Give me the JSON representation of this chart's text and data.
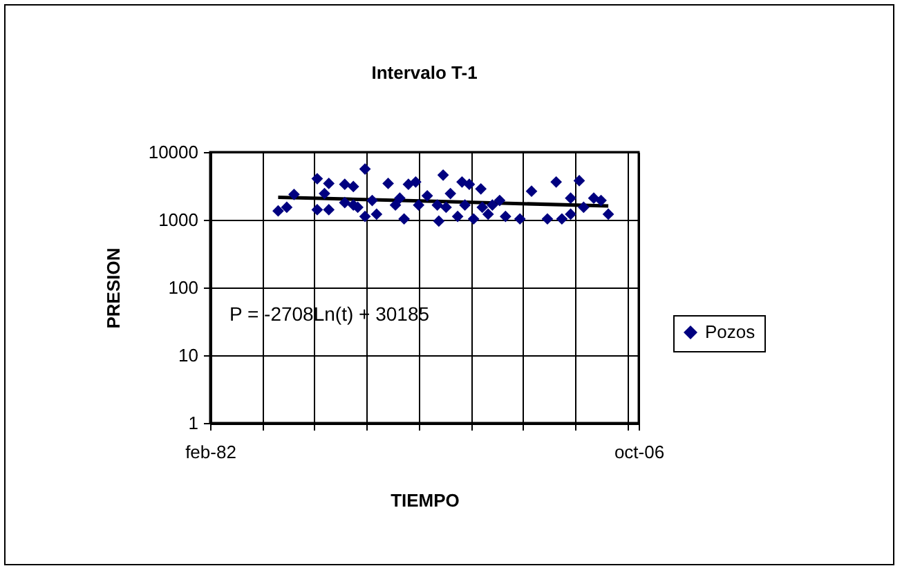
{
  "chart_data": {
    "type": "scatter",
    "title": "Intervalo T-1",
    "xlabel": "TIEMPO",
    "ylabel": "PRESION",
    "annotations": [
      "P = -2708Ln(t) + 30185"
    ],
    "log": "y",
    "grid": true,
    "legend": "right",
    "xlim": [
      "1982-02",
      "2006-10"
    ],
    "xticks": [
      {
        "value": "1982-02",
        "label": "feb-82"
      },
      {
        "value": "1985-02",
        "label": null
      },
      {
        "value": "1988-02",
        "label": null
      },
      {
        "value": "1991-02",
        "label": null
      },
      {
        "value": "1994-02",
        "label": null
      },
      {
        "value": "1997-02",
        "label": null
      },
      {
        "value": "2000-02",
        "label": null
      },
      {
        "value": "2003-02",
        "label": null
      },
      {
        "value": "2006-02",
        "label": null
      },
      {
        "value": "2006-10",
        "label": "oct-06"
      }
    ],
    "ylim": [
      1,
      10000
    ],
    "yticks": [
      1,
      10,
      100,
      1000,
      10000
    ],
    "series": [
      {
        "name": "Pozos",
        "color": "#000080",
        "type": "scatter",
        "marker": "diamond",
        "x": [
          "1986-01",
          "1986-07",
          "1986-12",
          "1988-04",
          "1988-04",
          "1988-09",
          "1988-12",
          "1988-12",
          "1989-11",
          "1989-11",
          "1990-05",
          "1990-05",
          "1990-08",
          "1991-01",
          "1991-01",
          "1991-06",
          "1991-09",
          "1992-05",
          "1992-10",
          "1993-01",
          "1993-04",
          "1993-07",
          "1993-12",
          "1994-02",
          "1994-08",
          "1995-03",
          "1995-04",
          "1995-07",
          "1995-09",
          "1995-12",
          "1996-05",
          "1996-08",
          "1996-10",
          "1997-01",
          "1997-04",
          "1997-09",
          "1997-10",
          "1998-02",
          "1998-05",
          "1998-10",
          "1999-02",
          "1999-12",
          "2000-08",
          "2001-07",
          "2002-01",
          "2002-05",
          "2002-11",
          "2002-11",
          "2003-05",
          "2003-08",
          "2004-03",
          "2004-08",
          "2005-01"
        ],
        "values": [
          1350,
          1530,
          2370,
          4040,
          1410,
          2440,
          3440,
          1410,
          3340,
          1790,
          3090,
          1650,
          1530,
          5610,
          1120,
          1930,
          1210,
          3440,
          1650,
          2090,
          1030,
          3340,
          3610,
          1650,
          2260,
          1650,
          955,
          4570,
          1530,
          2440,
          1120,
          3610,
          1650,
          3340,
          1030,
          2860,
          1530,
          1210,
          1650,
          1930,
          1120,
          1030,
          2640,
          1030,
          3610,
          1030,
          1210,
          2090,
          3780,
          1530,
          2090,
          1930,
          1210
        ]
      },
      {
        "color": "#000000",
        "type": "line",
        "marker": "none",
        "x": [
          "1986-01",
          "1990-01",
          "1995-01",
          "2000-01",
          "2005-01"
        ],
        "values": [
          2140,
          2020,
          1870,
          1730,
          1600
        ]
      }
    ]
  }
}
